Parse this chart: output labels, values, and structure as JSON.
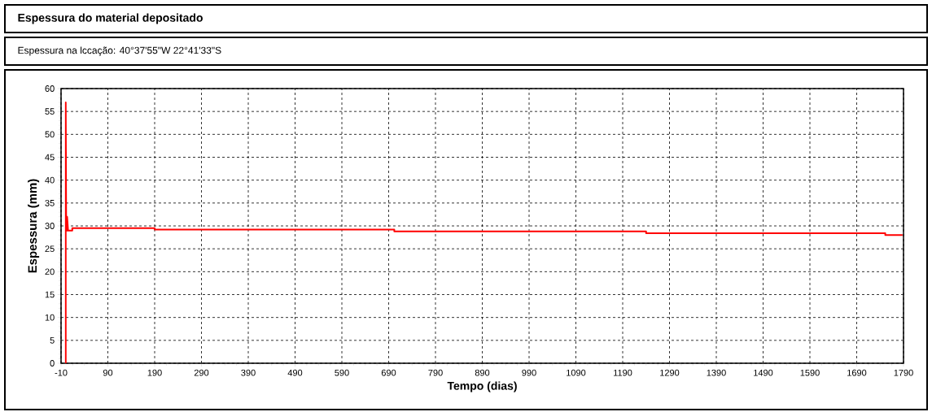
{
  "chart_data": {
    "type": "line",
    "title": "Espessura do material depositado",
    "subtitle": "Espessura na lccação: 40°37'55\"W 22°41'33\"S",
    "xlabel": "Tempo (dias)",
    "ylabel": "Espessura (mm)",
    "series": [
      {
        "color": "#ff0000",
        "x": [
          0,
          0,
          1,
          3,
          3,
          5,
          14,
          14,
          190,
          190,
          702,
          702,
          1240,
          1240,
          1751,
          1751,
          1788
        ],
        "values": [
          0,
          57,
          29,
          29,
          32,
          29,
          29,
          29.5,
          29.5,
          29.2,
          29.2,
          28.8,
          28.8,
          28.4,
          28.4,
          28.0,
          28.0
        ]
      }
    ],
    "xlim": [
      -10,
      1790
    ],
    "xticks": [
      -10,
      90,
      190,
      290,
      390,
      490,
      590,
      690,
      790,
      890,
      990,
      1090,
      1190,
      1290,
      1390,
      1490,
      1590,
      1690,
      1790
    ],
    "ylim": [
      0,
      60
    ],
    "yticks": [
      0,
      5,
      10,
      15,
      20,
      25,
      30,
      35,
      40,
      45,
      50,
      55,
      60
    ],
    "grid": true,
    "marker": "none",
    "line_style": "solid"
  }
}
